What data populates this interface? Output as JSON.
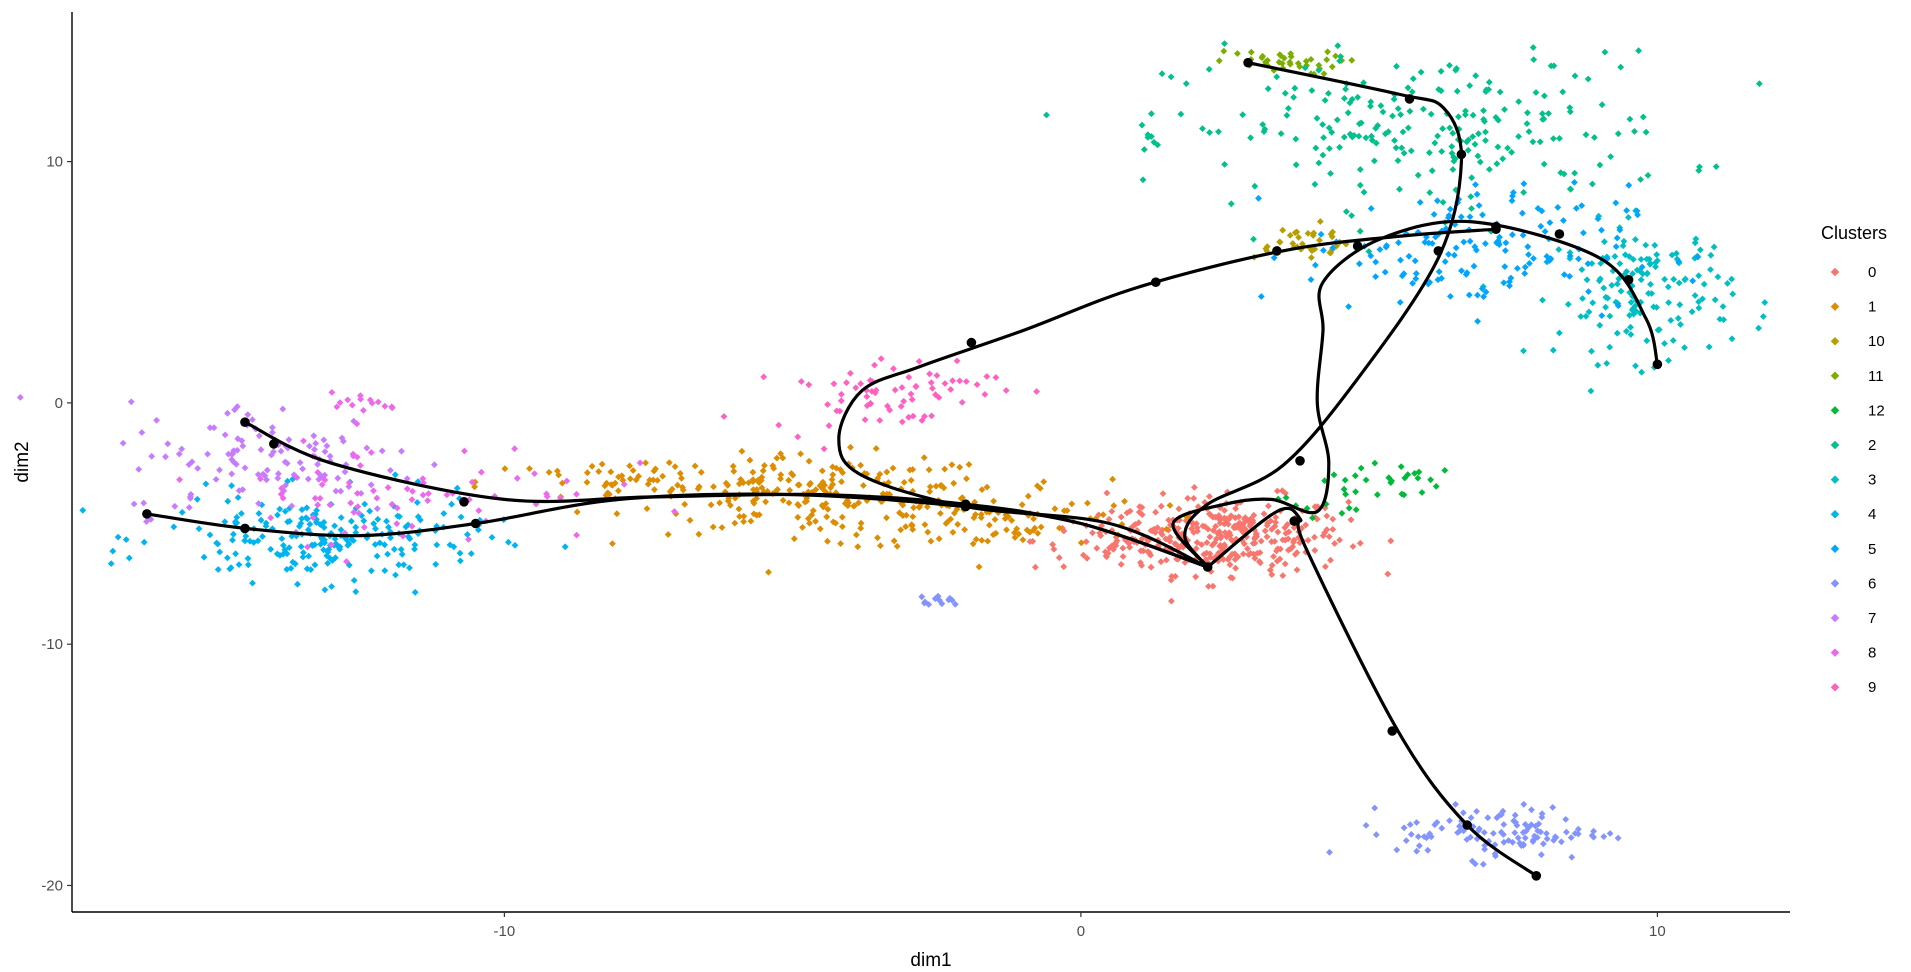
{
  "chart_data": {
    "type": "scatter",
    "title": "",
    "xlabel": "dim1",
    "ylabel": "dim2",
    "xlim": [
      -17.5,
      12.3
    ],
    "ylim": [
      -21.1,
      16.2
    ],
    "x_ticks": [
      -10,
      0,
      10
    ],
    "y_ticks": [
      -20,
      -10,
      0,
      10
    ],
    "grid": false,
    "legend": {
      "title": "Clusters",
      "placement": "right",
      "entries": [
        "0",
        "1",
        "10",
        "11",
        "12",
        "2",
        "3",
        "4",
        "5",
        "6",
        "7",
        "8",
        "9"
      ]
    },
    "series": [
      {
        "name": "0",
        "color": "#F8766D",
        "clusters": [
          {
            "cx": 2.6,
            "cy": -5.5,
            "sx": 1.0,
            "sy": 0.8,
            "n": 300
          },
          {
            "cx": 0.8,
            "cy": -5.7,
            "sx": 0.8,
            "sy": 0.6,
            "n": 70
          }
        ]
      },
      {
        "name": "1",
        "color": "#DE8C00",
        "clusters": [
          {
            "cx": -4.5,
            "cy": -3.8,
            "sx": 1.6,
            "sy": 0.8,
            "n": 200
          },
          {
            "cx": -7.8,
            "cy": -3.3,
            "sx": 1.3,
            "sy": 0.5,
            "n": 55
          },
          {
            "cx": -1.5,
            "cy": -4.8,
            "sx": 1.4,
            "sy": 0.7,
            "n": 95
          }
        ]
      },
      {
        "name": "10",
        "color": "#B79F00",
        "clusters": [
          {
            "cx": 3.8,
            "cy": 6.7,
            "sx": 0.55,
            "sy": 0.35,
            "n": 35
          }
        ]
      },
      {
        "name": "11",
        "color": "#7CAE00",
        "clusters": [
          {
            "cx": 3.4,
            "cy": 14.1,
            "sx": 0.55,
            "sy": 0.25,
            "n": 40
          }
        ]
      },
      {
        "name": "12",
        "color": "#00BA38",
        "clusters": [
          {
            "cx": 5.2,
            "cy": -3.2,
            "sx": 0.5,
            "sy": 0.4,
            "n": 25
          },
          {
            "cx": 4.2,
            "cy": -4.1,
            "sx": 0.4,
            "sy": 0.3,
            "n": 10
          }
        ]
      },
      {
        "name": "2",
        "color": "#00C08B",
        "clusters": [
          {
            "cx": 6.0,
            "cy": 11.3,
            "sx": 2.2,
            "sy": 1.6,
            "n": 230
          },
          {
            "cx": 1.3,
            "cy": 10.8,
            "sx": 0.1,
            "sy": 0.15,
            "n": 5
          }
        ]
      },
      {
        "name": "3",
        "color": "#00BFC4",
        "clusters": [
          {
            "cx": 9.8,
            "cy": 4.6,
            "sx": 0.75,
            "sy": 1.4,
            "n": 150
          }
        ]
      },
      {
        "name": "4",
        "color": "#00B4F0",
        "clusters": [
          {
            "cx": -13.1,
            "cy": -5.6,
            "sx": 1.4,
            "sy": 0.9,
            "n": 220
          }
        ]
      },
      {
        "name": "5",
        "color": "#00A5FF",
        "clusters": [
          {
            "cx": 6.7,
            "cy": 6.4,
            "sx": 1.4,
            "sy": 1.3,
            "n": 150
          }
        ]
      },
      {
        "name": "6",
        "color": "#8494FF",
        "clusters": [
          {
            "cx": 7.3,
            "cy": -17.8,
            "sx": 0.9,
            "sy": 0.55,
            "n": 110
          },
          {
            "cx": -2.5,
            "cy": -8.2,
            "sx": 0.25,
            "sy": 0.15,
            "n": 12
          }
        ]
      },
      {
        "name": "7",
        "color": "#C77CFF",
        "clusters": [
          {
            "cx": -14.0,
            "cy": -2.3,
            "sx": 1.3,
            "sy": 1.2,
            "n": 120
          }
        ]
      },
      {
        "name": "8",
        "color": "#ED68ED",
        "clusters": [
          {
            "cx": -11.7,
            "cy": -3.6,
            "sx": 1.7,
            "sy": 1.1,
            "n": 70
          },
          {
            "cx": -12.5,
            "cy": 0.0,
            "sx": 0.35,
            "sy": 0.2,
            "n": 14
          }
        ]
      },
      {
        "name": "9",
        "color": "#FF61C3",
        "clusters": [
          {
            "cx": -3.4,
            "cy": 0.5,
            "sx": 1.0,
            "sy": 0.8,
            "n": 70
          }
        ]
      }
    ],
    "trajectories": [
      {
        "points": [
          [
            2.2,
            -6.8
          ],
          [
            0.0,
            -5.0
          ],
          [
            -2.0,
            -4.2
          ],
          [
            -4.5,
            -3.8
          ],
          [
            -7.5,
            -3.9
          ],
          [
            -10.0,
            -4.0
          ],
          [
            -13.0,
            -2.5
          ],
          [
            -14.5,
            -0.8
          ]
        ],
        "nodes": [
          [
            -14.5,
            -0.8
          ],
          [
            -14.0,
            -1.7
          ],
          [
            -10.7,
            -4.1
          ],
          [
            -2.0,
            -4.2
          ],
          [
            2.2,
            -6.8
          ]
        ]
      },
      {
        "points": [
          [
            2.2,
            -6.8
          ],
          [
            0.0,
            -5.0
          ],
          [
            -2.0,
            -4.3
          ],
          [
            -5.0,
            -3.8
          ],
          [
            -8.0,
            -4.0
          ],
          [
            -10.5,
            -5.0
          ],
          [
            -12.5,
            -5.5
          ],
          [
            -14.5,
            -5.2
          ],
          [
            -16.2,
            -4.6
          ]
        ],
        "nodes": [
          [
            -16.2,
            -4.6
          ],
          [
            -14.5,
            -5.2
          ],
          [
            -10.5,
            -5.0
          ],
          [
            -2.0,
            -4.3
          ]
        ]
      },
      {
        "points": [
          [
            2.2,
            -6.8
          ],
          [
            1.8,
            -5.5
          ],
          [
            2.2,
            -4.2
          ],
          [
            3.5,
            -2.6
          ],
          [
            4.8,
            1.0
          ],
          [
            6.2,
            6.0
          ],
          [
            6.6,
            10.0
          ],
          [
            6.3,
            12.2
          ],
          [
            5.5,
            12.8
          ],
          [
            2.9,
            14.1
          ]
        ],
        "nodes": [
          [
            2.9,
            14.1
          ],
          [
            5.7,
            12.6
          ],
          [
            6.6,
            10.3
          ],
          [
            6.2,
            6.3
          ],
          [
            3.8,
            -2.4
          ]
        ]
      },
      {
        "points": [
          [
            2.2,
            -6.8
          ],
          [
            1.6,
            -5.0
          ],
          [
            2.5,
            -4.2
          ],
          [
            3.3,
            -4.0
          ],
          [
            4.1,
            -4.5
          ],
          [
            4.3,
            -2.5
          ],
          [
            4.1,
            0.0
          ],
          [
            4.2,
            3.0
          ],
          [
            4.2,
            5.0
          ],
          [
            5.2,
            6.8
          ],
          [
            6.8,
            7.5
          ],
          [
            9.0,
            6.0
          ],
          [
            9.8,
            3.5
          ],
          [
            10.0,
            1.6
          ]
        ],
        "nodes": [
          [
            10.0,
            1.6
          ],
          [
            9.5,
            5.1
          ],
          [
            8.3,
            7.0
          ],
          [
            7.2,
            7.3
          ]
        ]
      },
      {
        "points": [
          [
            2.2,
            -6.8
          ],
          [
            0.5,
            -5.0
          ],
          [
            -2.0,
            -4.3
          ],
          [
            -3.8,
            -3.0
          ],
          [
            -4.2,
            -1.5
          ],
          [
            -3.8,
            0.5
          ],
          [
            -2.8,
            1.5
          ],
          [
            -1.0,
            3.0
          ],
          [
            1.0,
            4.8
          ],
          [
            3.5,
            6.3
          ],
          [
            5.5,
            6.9
          ],
          [
            7.2,
            7.2
          ]
        ],
        "nodes": [
          [
            -1.9,
            2.5
          ],
          [
            1.3,
            5.0
          ],
          [
            3.4,
            6.3
          ],
          [
            4.8,
            6.5
          ],
          [
            7.2,
            7.2
          ]
        ]
      },
      {
        "points": [
          [
            2.2,
            -6.8
          ],
          [
            3.4,
            -4.5
          ],
          [
            3.8,
            -4.8
          ],
          [
            3.9,
            -6.0
          ],
          [
            5.5,
            -13.6
          ],
          [
            6.7,
            -17.5
          ],
          [
            7.9,
            -19.6
          ]
        ],
        "nodes": [
          [
            3.7,
            -4.9
          ],
          [
            5.4,
            -13.6
          ],
          [
            6.7,
            -17.5
          ],
          [
            7.9,
            -19.6
          ]
        ]
      }
    ]
  }
}
